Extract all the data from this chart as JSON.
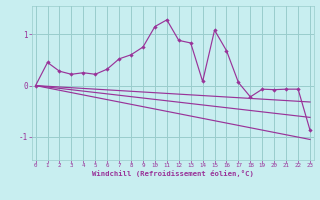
{
  "title": "",
  "xlabel": "Windchill (Refroidissement éolien,°C)",
  "ylabel": "",
  "bg_color": "#c8eef0",
  "line_color": "#993399",
  "grid_color": "#99cccc",
  "xticks": [
    0,
    1,
    2,
    3,
    4,
    5,
    6,
    7,
    8,
    9,
    10,
    11,
    12,
    13,
    14,
    15,
    16,
    17,
    18,
    19,
    20,
    21,
    22,
    23
  ],
  "yticks": [
    -1,
    0,
    1
  ],
  "xlim": [
    -0.3,
    23.3
  ],
  "ylim": [
    -1.45,
    1.55
  ],
  "curve1_x": [
    0,
    1,
    2,
    3,
    4,
    5,
    6,
    7,
    8,
    9,
    10,
    11,
    12,
    13,
    14,
    15,
    16,
    17,
    18,
    19,
    20,
    21,
    22,
    23
  ],
  "curve1_y": [
    0.0,
    0.45,
    0.28,
    0.22,
    0.25,
    0.22,
    0.32,
    0.52,
    0.6,
    0.75,
    1.15,
    1.28,
    0.88,
    0.83,
    0.08,
    1.08,
    0.68,
    0.06,
    -0.22,
    -0.07,
    -0.08,
    -0.07,
    -0.07,
    -0.87
  ],
  "line2_x0": 0,
  "line2_x1": 23,
  "line2_y0": 0.0,
  "line2_y1": -0.32,
  "line3_x0": 0,
  "line3_x1": 23,
  "line3_y0": 0.0,
  "line3_y1": -0.62,
  "line4_x0": 0,
  "line4_x1": 23,
  "line4_y0": 0.0,
  "line4_y1": -1.05
}
